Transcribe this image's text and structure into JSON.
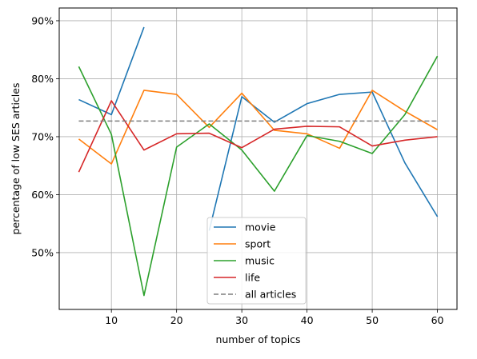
{
  "chart_data": {
    "type": "line",
    "title": "",
    "xlabel": "number of topics",
    "ylabel": "percentage of low SES articles",
    "xlim": [
      2,
      63
    ],
    "ylim": [
      40.2,
      92.2
    ],
    "xticks": [
      10,
      20,
      30,
      40,
      50,
      60
    ],
    "yticks": [
      50,
      60,
      70,
      80,
      90
    ],
    "ytick_suffix": "%",
    "grid": true,
    "legend_position": "lower-center",
    "x": [
      5,
      10,
      15,
      20,
      25,
      30,
      35,
      40,
      45,
      50,
      55,
      60
    ],
    "series": [
      {
        "name": "movie",
        "color": "#1f77b4",
        "style": "solid",
        "values": [
          76.4,
          73.8,
          88.9,
          null,
          53.8,
          76.9,
          72.5,
          75.7,
          77.3,
          77.7,
          65.5,
          56.2
        ]
      },
      {
        "name": "sport",
        "color": "#ff7f0e",
        "style": "solid",
        "values": [
          69.6,
          65.3,
          78.0,
          77.3,
          71.6,
          77.5,
          71.1,
          70.5,
          68.0,
          78.0,
          74.4,
          71.2
        ]
      },
      {
        "name": "music",
        "color": "#2ca02c",
        "style": "solid",
        "values": [
          82.1,
          70.4,
          42.6,
          68.2,
          72.2,
          67.7,
          60.6,
          70.2,
          69.2,
          67.1,
          73.8,
          83.9
        ]
      },
      {
        "name": "life",
        "color": "#d62728",
        "style": "solid",
        "values": [
          63.9,
          76.2,
          67.7,
          70.5,
          70.6,
          68.1,
          71.3,
          71.8,
          71.7,
          68.4,
          69.4,
          70.0
        ]
      },
      {
        "name": "all articles",
        "color": "#7f7f7f",
        "style": "dashed",
        "values": [
          72.7,
          72.7,
          72.7,
          72.7,
          72.7,
          72.7,
          72.7,
          72.7,
          72.7,
          72.7,
          72.7,
          72.7
        ]
      }
    ]
  }
}
